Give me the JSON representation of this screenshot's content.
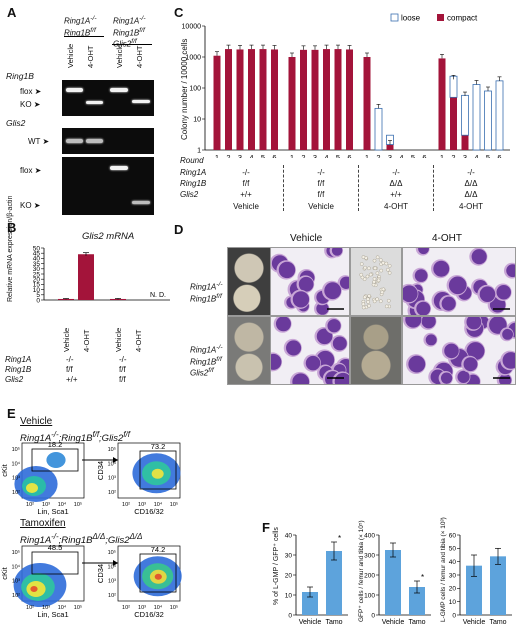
{
  "panels": {
    "A": {
      "label": "A",
      "col_headers": [
        "Ring1A-/- Ring1Bf/f",
        "Ring1A-/- Ring1Bf/f Glis2f/f"
      ],
      "lane_labels": [
        "Vehicle",
        "4-OHT",
        "Vehicle",
        "4-OHT"
      ],
      "gel_titles": [
        "Ring1B",
        "Glis2"
      ],
      "band_labels": [
        "flox",
        "KO",
        "WT",
        "flox",
        "KO"
      ]
    },
    "B": {
      "label": "B",
      "title": "Glis2 mRNA",
      "ylabel": "Relative mRNA expression/β-actin",
      "nd": "N. D.",
      "row_labels": [
        "Ring1A",
        "Ring1B",
        "Glis2"
      ],
      "groups": [
        {
          "ring1a": "-/-",
          "ring1b": "f/f",
          "glis2": "+/+"
        },
        {
          "ring1a": "-/-",
          "ring1b": "f/f",
          "glis2": "f/f"
        }
      ]
    },
    "C": {
      "label": "C",
      "ylabel": "Colony number / 10000 cells",
      "legend": [
        "loose",
        "compact"
      ],
      "row_labels": [
        "Round",
        "Ring1A",
        "Ring1B",
        "Glis2"
      ],
      "rounds": [
        "1",
        "2",
        "3",
        "4",
        "5",
        "6"
      ],
      "groups": [
        {
          "ring1a": "-/-",
          "ring1b": "f/f",
          "glis2": "+/+",
          "treat": "Vehicle"
        },
        {
          "ring1a": "-/-",
          "ring1b": "f/f",
          "glis2": "f/f",
          "treat": "Vehicle"
        },
        {
          "ring1a": "-/-",
          "ring1b": "Δ/Δ",
          "glis2": "+/+",
          "treat": "4-OHT"
        },
        {
          "ring1a": "-/-",
          "ring1b": "Δ/Δ",
          "glis2": "Δ/Δ",
          "treat": "4-OHT"
        }
      ]
    },
    "D": {
      "label": "D",
      "col_titles": [
        "Vehicle",
        "4-OHT"
      ],
      "row_labels": [
        "Ring1A-/- Ring1Bf/f",
        "Ring1A-/- Ring1Bf/f Glis2f/f"
      ]
    },
    "E": {
      "label": "E",
      "vehicle_title": "Vehicle",
      "vehicle_genotype": "Ring1A-/-;Ring1Bf/f;Glis2f/f",
      "tamox_title": "Tamoxifen",
      "tamox_genotype": "Ring1A-/-;Ring1BΔ/Δ;Glis2Δ/Δ",
      "gates": [
        "18.2",
        "73.2",
        "48.5",
        "74.2"
      ],
      "axes": {
        "left_x": "Lin, Sca1",
        "left_y": "cKit",
        "right_x": "CD16/32",
        "right_y": "CD34"
      },
      "ticks": [
        "10²",
        "10³",
        "10⁴",
        "10⁵"
      ]
    },
    "F": {
      "label": "F",
      "ylabels": [
        "% of L-GMP / GFP⁺ cells",
        "GFP⁺ cells / femur and tibia (× 10⁵)",
        "L-GMP cells / femur and tibia (× 10³)"
      ],
      "star": "*"
    }
  },
  "chart_data": [
    {
      "type": "bar",
      "title": "Glis2 mRNA",
      "ylabel": "Relative mRNA expression/β-actin",
      "ylim": [
        0,
        50
      ],
      "yticks": [
        0,
        5,
        10,
        15,
        20,
        25,
        30,
        35,
        40,
        45,
        50
      ],
      "categories": [
        "Vehicle",
        "4-OHT",
        "Vehicle",
        "4-OHT"
      ],
      "values": [
        1,
        44,
        1,
        0
      ],
      "errors": [
        0.4,
        1.5,
        0.5,
        0
      ],
      "annotations": [
        "N. D."
      ]
    },
    {
      "type": "bar",
      "ylabel": "Colony number / 10000 cells",
      "yscale": "log",
      "ylim": [
        1,
        10000
      ],
      "yticks": [
        1,
        10,
        100,
        1000,
        10000
      ],
      "series": [
        {
          "name": "compact",
          "values": [
            1100,
            1800,
            1750,
            1800,
            1800,
            1750,
            1000,
            1700,
            1700,
            1800,
            1800,
            1750,
            1000,
            0,
            1.5,
            0,
            0,
            0,
            900,
            50,
            3,
            0,
            0,
            0
          ]
        },
        {
          "name": "loose",
          "values": [
            0,
            0,
            0,
            0,
            0,
            0,
            0,
            0,
            0,
            0,
            0,
            0,
            0,
            22,
            1.5,
            0,
            0,
            0,
            0,
            190,
            55,
            130,
            80,
            170
          ]
        }
      ],
      "rounds": [
        "1",
        "2",
        "3",
        "4",
        "5",
        "6"
      ],
      "legend_position": "top-right"
    },
    {
      "type": "bar",
      "ylabel": "% of L-GMP / GFP⁺ cells",
      "ylim": [
        0,
        40
      ],
      "yticks": [
        0,
        10,
        20,
        30,
        40
      ],
      "categories": [
        "Vehicle",
        "Tamo"
      ],
      "values": [
        11.5,
        32
      ],
      "errors": [
        2.5,
        4.5
      ]
    },
    {
      "type": "bar",
      "ylabel": "GFP⁺ cells / femur and tibia (× 10⁵)",
      "ylim": [
        0,
        400
      ],
      "yticks": [
        0,
        100,
        200,
        300,
        400
      ],
      "categories": [
        "Vehicle",
        "Tamo"
      ],
      "values": [
        325,
        140
      ],
      "errors": [
        35,
        30
      ]
    },
    {
      "type": "bar",
      "ylabel": "L-GMP cells / femur and tibia (× 10³)",
      "ylim": [
        0,
        60
      ],
      "yticks": [
        0,
        10,
        20,
        30,
        40,
        50,
        60
      ],
      "categories": [
        "Vehicle",
        "Tamo"
      ],
      "values": [
        37,
        44
      ],
      "errors": [
        8,
        6
      ]
    }
  ]
}
